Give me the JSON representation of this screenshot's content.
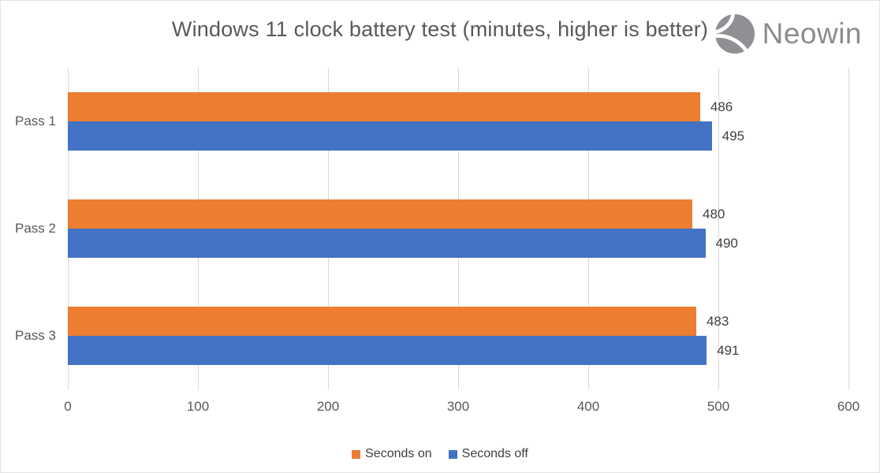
{
  "title": "Windows 11 clock battery test (minutes, higher is better)",
  "brand": {
    "name": "Neowin",
    "icon": "neowin-sphere-icon",
    "color": "#8b8c8e"
  },
  "chart_data": {
    "type": "bar",
    "orientation": "horizontal",
    "title": "Windows 11 clock battery test (minutes, higher is better)",
    "categories": [
      "Pass 1",
      "Pass 2",
      "Pass 3"
    ],
    "series": [
      {
        "name": "Seconds on",
        "color": "#ED7D31",
        "values": [
          486,
          480,
          483
        ]
      },
      {
        "name": "Seconds off",
        "color": "#4472C4",
        "values": [
          495,
          490,
          491
        ]
      }
    ],
    "xlim": [
      0,
      600
    ],
    "x_ticks": [
      0,
      100,
      200,
      300,
      400,
      500,
      600
    ],
    "xlabel": "",
    "ylabel": "",
    "grid": "vertical",
    "gridline_color": "#d9d9d9",
    "legend_position": "bottom",
    "data_labels": true
  },
  "colors": {
    "title_text": "#595959",
    "axis_text": "#595959",
    "data_label_text": "#404040",
    "legend_text": "#404040"
  }
}
